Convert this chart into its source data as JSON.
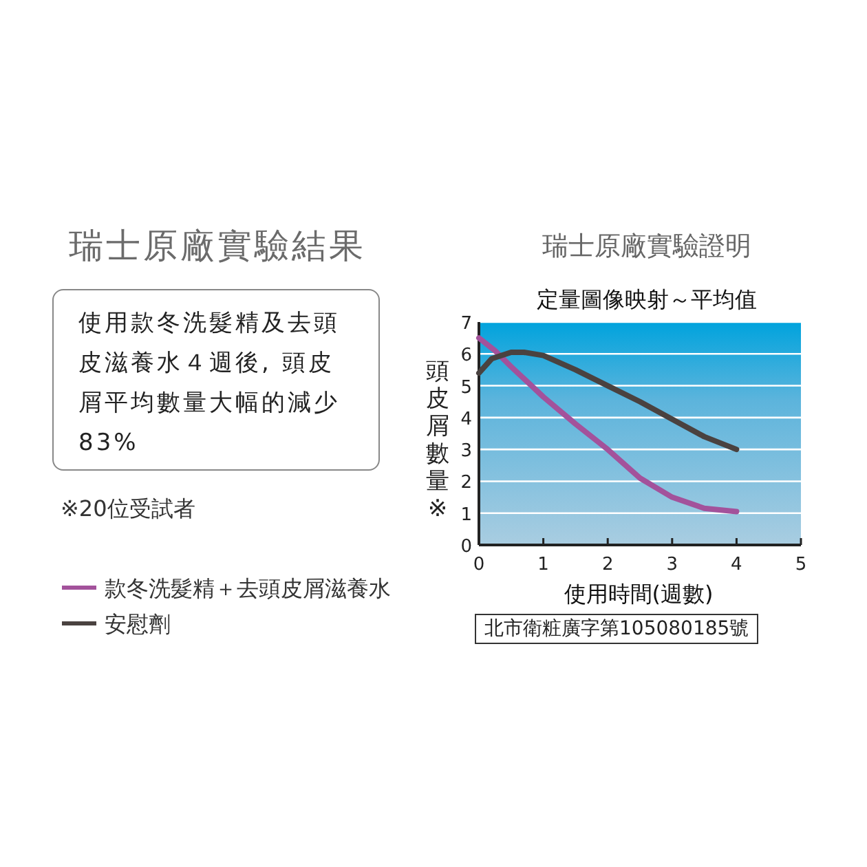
{
  "chart_data": {
    "type": "line",
    "title": "瑞士原廠實驗證明",
    "subtitle": "定量圖像映射～平均值",
    "xlabel": "使用時間(週數)",
    "ylabel": "頭皮屑數量※",
    "xlim": [
      0,
      5
    ],
    "xticks": [
      0,
      1,
      2,
      3,
      4,
      5
    ],
    "ylim": [
      0,
      7
    ],
    "yticks": [
      0,
      1,
      2,
      3,
      4,
      5,
      6,
      7
    ],
    "grid": "y",
    "legend": "left",
    "marker": "none",
    "line_style": "solid",
    "series": [
      {
        "name": "款冬洗髮精＋去頭皮屑滋養水",
        "color": "#a3529b",
        "x": [
          0,
          0.25,
          0.5,
          1,
          1.5,
          2,
          2.5,
          3,
          3.5,
          4
        ],
        "values": [
          6.5,
          6.1,
          5.6,
          4.65,
          3.8,
          3.0,
          2.1,
          1.5,
          1.15,
          1.05
        ]
      },
      {
        "name": "安慰劑",
        "color": "#4a4240",
        "x": [
          0,
          0.2,
          0.5,
          0.7,
          1,
          1.5,
          2,
          2.5,
          3,
          3.5,
          4
        ],
        "values": [
          5.4,
          5.85,
          6.05,
          6.05,
          5.95,
          5.5,
          5.0,
          4.5,
          3.95,
          3.4,
          3.0
        ]
      }
    ],
    "annotations": [
      "瑞士原廠實驗結果",
      "使用款冬洗髮精及去頭皮滋養水４週後, 頭皮屑平均數量大幅的減少83%",
      "※20位受試者",
      "北市衛粧廣字第105080185號"
    ]
  }
}
